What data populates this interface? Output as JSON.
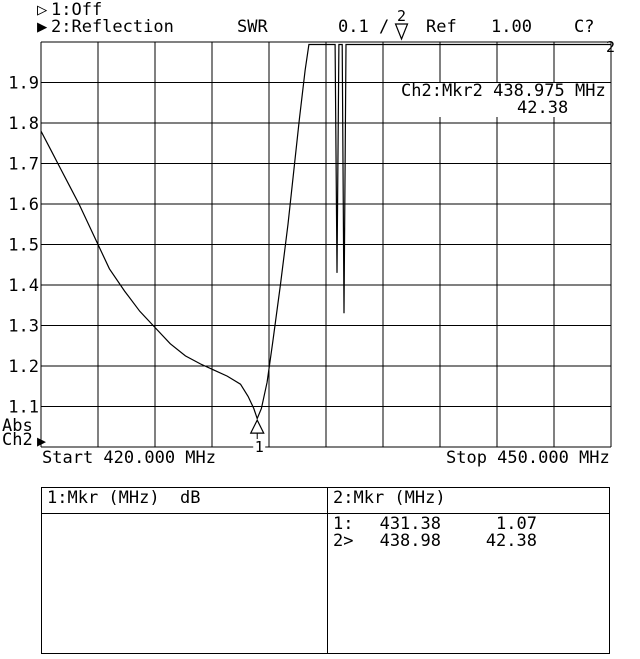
{
  "titlebar": {
    "trace1_indicator": "▷",
    "trace1_label": "1:Off",
    "trace2_indicator": "▶",
    "trace2_label": "2:Reflection",
    "format_label": "SWR",
    "scale_label": "0.1 /",
    "ref_label": "Ref",
    "ref_value": "1.00",
    "cal_status": "C?"
  },
  "graph": {
    "marker_readout_line1": "Ch2:Mkr2  438.975 MHz",
    "marker_readout_line2": "42.38",
    "abs_label": "Abs",
    "channel_label": "Ch2",
    "channel_ref_indicator": "▶",
    "start_label": "Start 420.000 MHz",
    "stop_label": "Stop 450.000 MHz",
    "right_edge_channel_indicator": "2"
  },
  "chart_data": {
    "type": "line",
    "title": "SWR",
    "x_start_mhz": 420.0,
    "x_stop_mhz": 450.0,
    "x_divisions": 10,
    "y_divisions": 10,
    "ylim": [
      1.0,
      2.0
    ],
    "y_ticks": [
      1.9,
      1.8,
      1.7,
      1.6,
      1.5,
      1.4,
      1.3,
      1.2,
      1.1
    ],
    "scale_per_division": 0.1,
    "reference_level": 1.0,
    "grid": true,
    "series": [
      {
        "name": "Ch2 Reflection SWR",
        "clip_max": 2.0,
        "points_mhz_swr": [
          [
            420.0,
            1.78
          ],
          [
            420.5,
            1.735
          ],
          [
            421.0,
            1.69
          ],
          [
            421.5,
            1.645
          ],
          [
            422.0,
            1.6
          ],
          [
            422.5,
            1.55
          ],
          [
            423.0,
            1.5
          ],
          [
            423.6,
            1.44
          ],
          [
            424.4,
            1.385
          ],
          [
            425.2,
            1.335
          ],
          [
            426.0,
            1.295
          ],
          [
            426.8,
            1.255
          ],
          [
            427.6,
            1.225
          ],
          [
            428.4,
            1.205
          ],
          [
            429.1,
            1.19
          ],
          [
            429.8,
            1.175
          ],
          [
            430.5,
            1.155
          ],
          [
            430.9,
            1.125
          ],
          [
            431.2,
            1.095
          ],
          [
            431.38,
            1.07
          ],
          [
            431.6,
            1.095
          ],
          [
            431.9,
            1.16
          ],
          [
            432.2,
            1.26
          ],
          [
            432.6,
            1.4
          ],
          [
            433.0,
            1.55
          ],
          [
            433.3,
            1.68
          ],
          [
            433.6,
            1.81
          ],
          [
            433.9,
            1.93
          ],
          [
            434.1,
            2.0
          ],
          [
            435.48,
            2.0
          ],
          [
            435.58,
            1.43
          ],
          [
            435.68,
            2.0
          ],
          [
            435.85,
            2.0
          ],
          [
            435.95,
            1.33
          ],
          [
            436.05,
            2.0
          ],
          [
            450.0,
            2.0
          ]
        ]
      }
    ],
    "markers": [
      {
        "id": "1",
        "freq_mhz": 431.38,
        "swr": 1.07,
        "shape": "up-triangle",
        "offscale_high": false
      },
      {
        "id": "2",
        "freq_mhz": 438.975,
        "swr": 42.38,
        "shape": "down-triangle",
        "offscale_high": true
      }
    ]
  },
  "marker_table": {
    "left": {
      "header": "1:Mkr (MHz)  dB"
    },
    "right": {
      "header": "2:Mkr (MHz)",
      "rows": [
        {
          "marker": "1:",
          "freq": "431.38",
          "value": "1.07"
        },
        {
          "marker": "2>",
          "freq": "438.98",
          "value": "42.38"
        }
      ]
    }
  },
  "colors": {
    "background": "#ffffff",
    "foreground": "#000000"
  }
}
